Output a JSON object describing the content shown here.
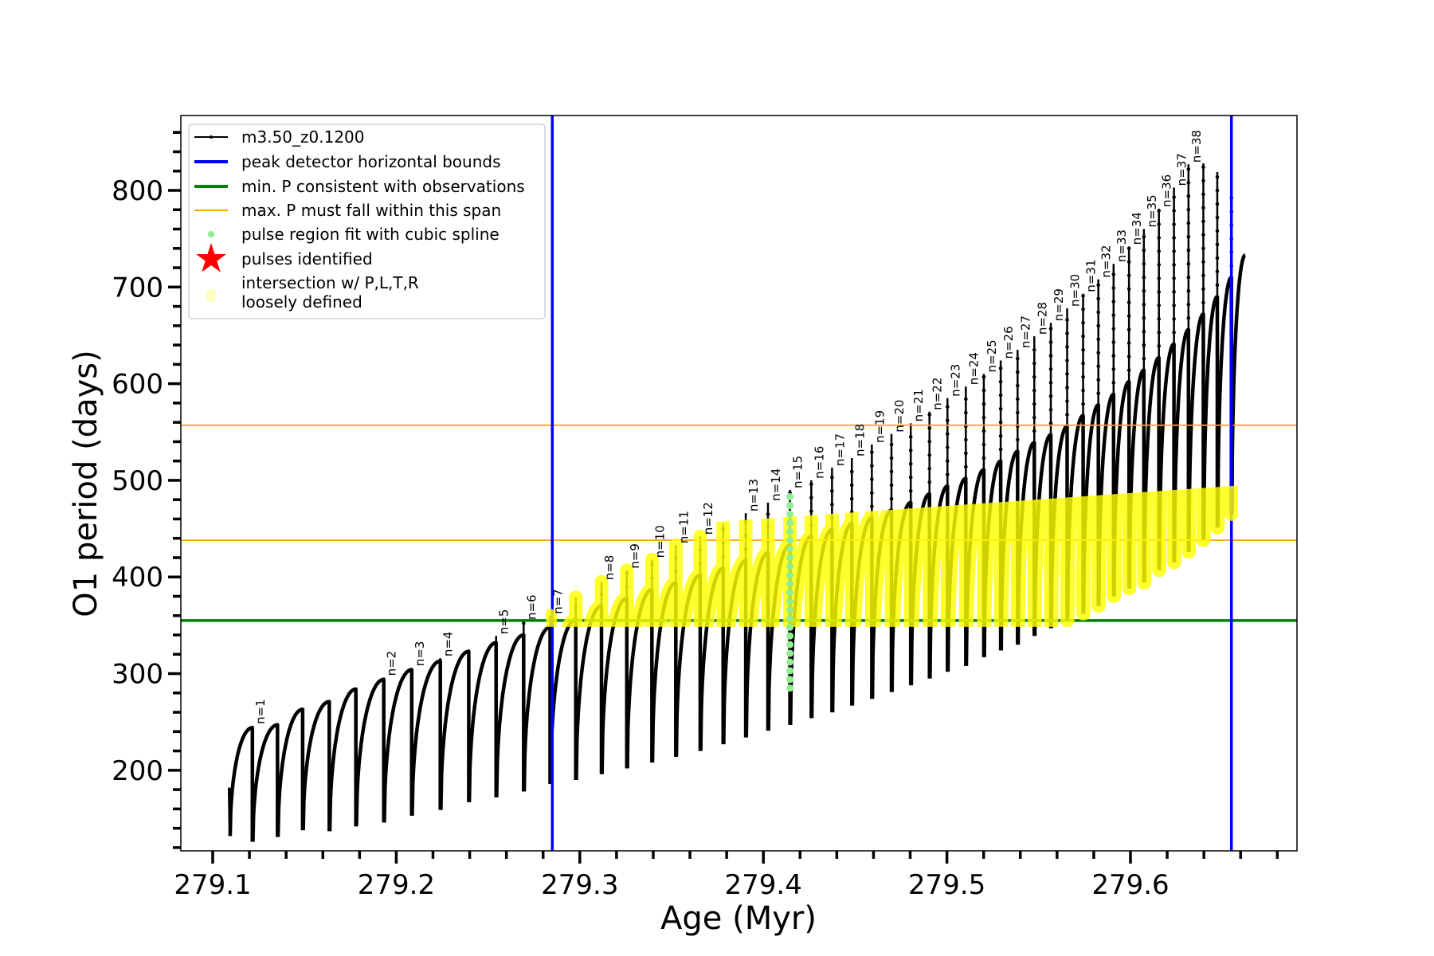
{
  "chart_data": {
    "type": "line",
    "title": "",
    "xlabel": "Age (Myr)",
    "ylabel": "O1 period (days)",
    "xlim": [
      279.083,
      279.691
    ],
    "ylim": [
      117,
      878
    ],
    "xticks": [
      "279.1",
      "279.2",
      "279.3",
      "279.4",
      "279.5",
      "279.6"
    ],
    "yticks": [
      "200",
      "300",
      "400",
      "500",
      "600",
      "700",
      "800"
    ],
    "grid": false,
    "legend_position": "top-left",
    "colors": {
      "model": "#000000",
      "bounds": "#0000ff",
      "min_p": "#008000",
      "max_p": "#ffa500",
      "spline": "#90ee90",
      "pulses": "#ff0000",
      "loose": "#ffff00"
    },
    "series": [
      {
        "name": "m3.50_z0.1200",
        "start": {
          "age": 279.1091,
          "P": 182,
          "dip": 132
        },
        "end": {
          "age": 279.6625,
          "P": 733
        },
        "cycles": [
          {
            "age": 279.1216,
            "peak": 244,
            "spike": 246,
            "dip": 126,
            "label": "n=1"
          },
          {
            "age": 279.1353,
            "peak": 247,
            "spike": 248,
            "dip": 131,
            "label": ""
          },
          {
            "age": 279.149,
            "peak": 263,
            "spike": 264,
            "dip": 138,
            "label": ""
          },
          {
            "age": 279.1635,
            "peak": 271,
            "spike": 272,
            "dip": 137,
            "label": ""
          },
          {
            "age": 279.178,
            "peak": 284,
            "spike": 285,
            "dip": 142,
            "label": ""
          },
          {
            "age": 279.1932,
            "peak": 294,
            "spike": 296,
            "dip": 146,
            "label": "n=2"
          },
          {
            "age": 279.2084,
            "peak": 304,
            "spike": 306,
            "dip": 153,
            "label": "n=3"
          },
          {
            "age": 279.224,
            "peak": 313,
            "spike": 316,
            "dip": 159,
            "label": "n=4"
          },
          {
            "age": 279.2395,
            "peak": 323,
            "spike": 325,
            "dip": 167,
            "label": ""
          },
          {
            "age": 279.2544,
            "peak": 332,
            "spike": 339,
            "dip": 172,
            "label": "n=5"
          },
          {
            "age": 279.2694,
            "peak": 340,
            "spike": 354,
            "dip": 178,
            "label": "n=6"
          },
          {
            "age": 279.2838,
            "peak": 348,
            "spike": 360,
            "dip": 186,
            "label": "n=7"
          },
          {
            "age": 279.2978,
            "peak": 356,
            "spike": 379,
            "dip": 190,
            "label": ""
          },
          {
            "age": 279.3118,
            "peak": 370,
            "spike": 395,
            "dip": 196,
            "label": "n=8"
          },
          {
            "age": 279.3256,
            "peak": 378,
            "spike": 407,
            "dip": 202,
            "label": "n=9"
          },
          {
            "age": 279.3393,
            "peak": 387,
            "spike": 418,
            "dip": 208,
            "label": "n=10"
          },
          {
            "age": 279.3523,
            "peak": 394,
            "spike": 433,
            "dip": 214,
            "label": "n=11"
          },
          {
            "age": 279.3656,
            "peak": 402,
            "spike": 442,
            "dip": 220,
            "label": "n=12"
          },
          {
            "age": 279.3781,
            "peak": 409,
            "spike": 455,
            "dip": 227,
            "label": ""
          },
          {
            "age": 279.3904,
            "peak": 417,
            "spike": 466,
            "dip": 234,
            "label": "n=13"
          },
          {
            "age": 279.4025,
            "peak": 425,
            "spike": 477,
            "dip": 241,
            "label": "n=14"
          },
          {
            "age": 279.4145,
            "peak": 433,
            "spike": 490,
            "dip": 247,
            "label": "n=15"
          },
          {
            "age": 279.4261,
            "peak": 442,
            "spike": 500,
            "dip": 254,
            "label": "n=16"
          },
          {
            "age": 279.4374,
            "peak": 449,
            "spike": 513,
            "dip": 260,
            "label": "n=17"
          },
          {
            "age": 279.4482,
            "peak": 455,
            "spike": 523,
            "dip": 267,
            "label": "n=18"
          },
          {
            "age": 279.4591,
            "peak": 461,
            "spike": 537,
            "dip": 274,
            "label": "n=19"
          },
          {
            "age": 279.4698,
            "peak": 469,
            "spike": 548,
            "dip": 281,
            "label": "n=20"
          },
          {
            "age": 279.4803,
            "peak": 477,
            "spike": 559,
            "dip": 288,
            "label": "n=21"
          },
          {
            "age": 279.4905,
            "peak": 486,
            "spike": 571,
            "dip": 295,
            "label": "n=22"
          },
          {
            "age": 279.5003,
            "peak": 494,
            "spike": 585,
            "dip": 302,
            "label": "n=23"
          },
          {
            "age": 279.5103,
            "peak": 502,
            "spike": 597,
            "dip": 308,
            "label": "n=24"
          },
          {
            "age": 279.5201,
            "peak": 511,
            "spike": 610,
            "dip": 317,
            "label": "n=25"
          },
          {
            "age": 279.5293,
            "peak": 520,
            "spike": 624,
            "dip": 324,
            "label": "n=26"
          },
          {
            "age": 279.5385,
            "peak": 530,
            "spike": 635,
            "dip": 330,
            "label": "n=27"
          },
          {
            "age": 279.5476,
            "peak": 539,
            "spike": 649,
            "dip": 339,
            "label": "n=28"
          },
          {
            "age": 279.5566,
            "peak": 547,
            "spike": 663,
            "dip": 347,
            "label": "n=29"
          },
          {
            "age": 279.5655,
            "peak": 556,
            "spike": 678,
            "dip": 355,
            "label": "n=30"
          },
          {
            "age": 279.5742,
            "peak": 567,
            "spike": 693,
            "dip": 362,
            "label": "n=31"
          },
          {
            "age": 279.5825,
            "peak": 578,
            "spike": 708,
            "dip": 370,
            "label": "n=32"
          },
          {
            "age": 279.5908,
            "peak": 589,
            "spike": 724,
            "dip": 380,
            "label": "n=33"
          },
          {
            "age": 279.5992,
            "peak": 602,
            "spike": 742,
            "dip": 388,
            "label": "n=34"
          },
          {
            "age": 279.6073,
            "peak": 614,
            "spike": 760,
            "dip": 394,
            "label": "n=35"
          },
          {
            "age": 279.6155,
            "peak": 627,
            "spike": 781,
            "dip": 407,
            "label": "n=36"
          },
          {
            "age": 279.6237,
            "peak": 641,
            "spike": 803,
            "dip": 415,
            "label": "n=37"
          },
          {
            "age": 279.6316,
            "peak": 656,
            "spike": 827,
            "dip": 426,
            "label": "n=38"
          },
          {
            "age": 279.6397,
            "peak": 672,
            "spike": 828,
            "dip": 438,
            "label": ""
          },
          {
            "age": 279.6473,
            "peak": 690,
            "spike": 819,
            "dip": 451,
            "label": ""
          },
          {
            "age": 279.655,
            "peak": 710,
            "spike": 797,
            "dip": 465,
            "label": ""
          }
        ]
      }
    ],
    "vertical_lines": {
      "name": "peak detector horizontal bounds",
      "ages": [
        279.285,
        279.655
      ]
    },
    "min_period_line": {
      "name": "min. P consistent with observations",
      "P": 355
    },
    "max_period_span": {
      "name": "max. P must fall within this span",
      "P": [
        438,
        557
      ]
    },
    "spline_fit_region": {
      "name": "pulse region fit with cubic spline",
      "age": 279.4145,
      "P_range": [
        285,
        490
      ]
    },
    "loose_intersection": {
      "name": "intersection w/ P,L,T,R loosely defined",
      "age_range": [
        279.285,
        279.655
      ],
      "P_min": 355,
      "P_max_range": [
        438,
        488
      ]
    },
    "legend": [
      {
        "label": "m3.50_z0.1200",
        "kind": "line-marker",
        "color": "#000000"
      },
      {
        "label": "peak detector horizontal bounds",
        "kind": "line",
        "color": "#0000ff"
      },
      {
        "label": "min. P consistent with observations",
        "kind": "line",
        "color": "#008000"
      },
      {
        "label": "max. P must fall within this span",
        "kind": "thin-line",
        "color": "#ffa500"
      },
      {
        "label": "pulse region fit with cubic spline",
        "kind": "dot",
        "color": "#90ee90"
      },
      {
        "label": "pulses identified",
        "kind": "star",
        "color": "#ff0000"
      },
      {
        "label": "intersection w/ P,L,T,R",
        "label2": "loosely defined",
        "kind": "circle",
        "color": "#ffffc0"
      }
    ]
  }
}
